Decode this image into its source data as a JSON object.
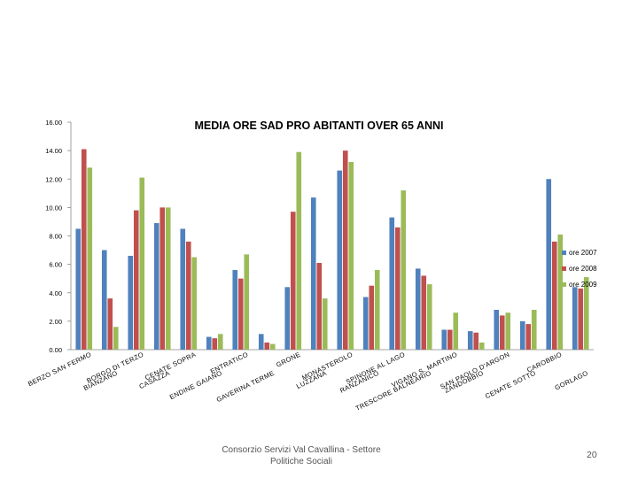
{
  "chart_data": {
    "type": "bar",
    "title": "MEDIA ORE SAD PRO ABITANTI OVER 65 ANNI",
    "ylim": [
      0,
      16
    ],
    "yticks": [
      "0.00",
      "2.00",
      "4.00",
      "6.00",
      "8.00",
      "10.00",
      "12.00",
      "14.00",
      "16.00"
    ],
    "grid": false,
    "legend_position": "right",
    "categories": [
      "BERZO SAN FERMO",
      "BIANZANO",
      "BORGO DI TERZO",
      "CASAZZA",
      "CENATE SOPRA",
      "ENDINE GAIANO",
      "ENTRATICO",
      "GAVERINA TERME",
      "GRONE",
      "LUZZANA",
      "MONASTEROLO",
      "RANZANICO",
      "SPINONE AL LAGO",
      "TRESCORE BALNEARIO",
      "VIGANO S. MARTINO",
      "ZANDOBBIO",
      "SAN PAOLO D'ARGON",
      "CENATE SOTTO",
      "CAROBBIO",
      "GORLAGO"
    ],
    "series": [
      {
        "name": "ore 2007",
        "color": "#4f81bd",
        "values": [
          8.5,
          7.0,
          6.6,
          8.9,
          8.5,
          0.9,
          5.6,
          1.1,
          4.4,
          10.7,
          12.6,
          3.7,
          9.3,
          5.7,
          1.4,
          1.3,
          2.8,
          2.0,
          12.0,
          4.4
        ]
      },
      {
        "name": "ore 2008",
        "color": "#c0504d",
        "values": [
          14.1,
          3.6,
          9.8,
          10.0,
          7.6,
          0.8,
          5.0,
          0.5,
          9.7,
          6.1,
          14.0,
          4.5,
          8.6,
          5.2,
          1.4,
          1.2,
          2.4,
          1.8,
          7.6,
          4.3
        ]
      },
      {
        "name": "ore 2009",
        "color": "#9bbb59",
        "values": [
          12.8,
          1.6,
          12.1,
          10.0,
          6.5,
          1.1,
          6.7,
          0.4,
          13.9,
          3.6,
          13.2,
          5.6,
          11.2,
          4.6,
          2.6,
          0.5,
          2.6,
          2.8,
          8.1,
          5.1
        ]
      }
    ]
  },
  "footer": {
    "text": "Consorzio Servizi Val Cavallina - Settore Politiche Sociali",
    "page_number": "20"
  }
}
